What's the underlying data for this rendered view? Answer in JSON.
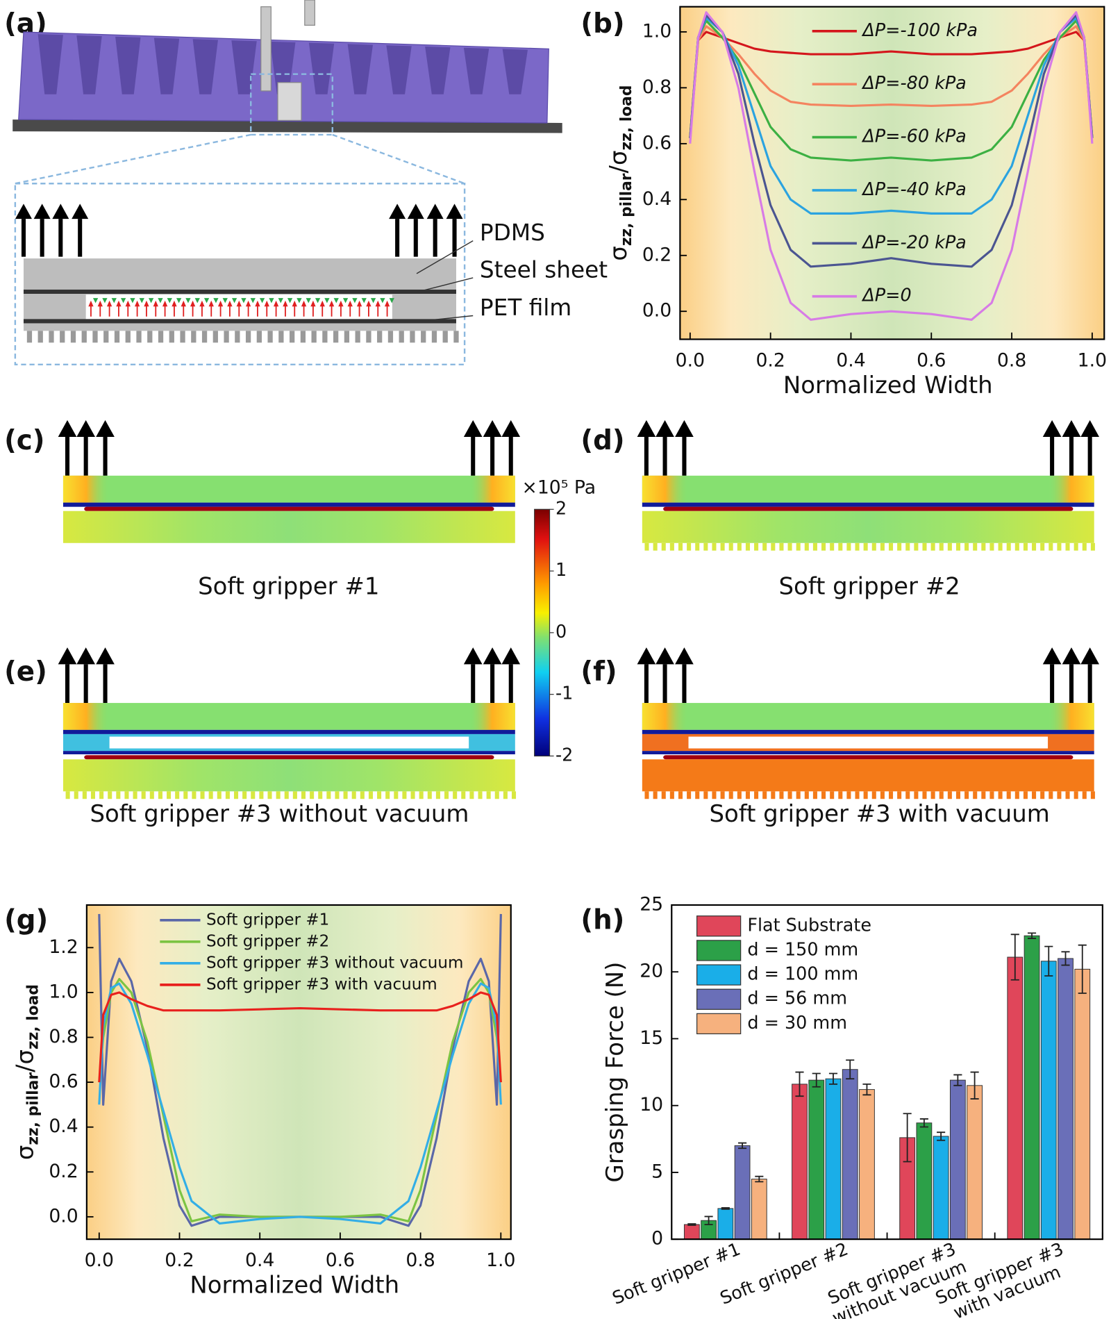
{
  "figure": {
    "panel_labels": [
      "(a)",
      "(b)",
      "(c)",
      "(d)",
      "(e)",
      "(f)",
      "(g)",
      "(h)"
    ],
    "layers": [
      "PDMS",
      "Steel sheet",
      "PET film"
    ],
    "captions": [
      "Soft gripper #1",
      "Soft gripper #2",
      "Soft gripper #3 without vacuum",
      "Soft gripper #3 with vacuum"
    ],
    "colorbar": {
      "label": "×10⁵ Pa",
      "range": [
        -2,
        2
      ],
      "ticks": [
        2,
        1,
        0,
        -1,
        -2
      ]
    }
  },
  "chart_data": [
    {
      "type": "line",
      "xlabel": "Normalized Width",
      "ylabel": [
        "σ",
        "zz, pillar",
        "/σ",
        "zz, load"
      ],
      "x": [
        0,
        0.02,
        0.04,
        0.08,
        0.12,
        0.16,
        0.2,
        0.25,
        0.3,
        0.4,
        0.5,
        0.6,
        0.7,
        0.75,
        0.8,
        0.84,
        0.88,
        0.92,
        0.96,
        0.98,
        1.0
      ],
      "xlim": [
        -0.025,
        1.03
      ],
      "ylim": [
        -0.1,
        1.09
      ],
      "xticks": [
        {
          "value": 0,
          "label": "0.0"
        },
        {
          "value": 0.2,
          "label": "0.2"
        },
        {
          "value": 0.4,
          "label": "0.4"
        },
        {
          "value": 0.6,
          "label": "0.6"
        },
        {
          "value": 0.8,
          "label": "0.8"
        },
        {
          "value": 1,
          "label": "1.0"
        }
      ],
      "yticks": [
        {
          "value": 0,
          "label": "0.0"
        },
        {
          "value": 0.2,
          "label": "0.2"
        },
        {
          "value": 0.4,
          "label": "0.4"
        },
        {
          "value": 0.6,
          "label": "0.6"
        },
        {
          "value": 0.8,
          "label": "0.8"
        },
        {
          "value": 1,
          "label": "1.0"
        }
      ],
      "legend": "inline",
      "series": [
        {
          "name": "ΔP=-100 kPa",
          "color": "#d4161c",
          "values": [
            0.62,
            0.97,
            1.0,
            0.98,
            0.96,
            0.94,
            0.93,
            0.925,
            0.92,
            0.92,
            0.93,
            0.92,
            0.92,
            0.925,
            0.93,
            0.94,
            0.96,
            0.98,
            1.0,
            0.97,
            0.62
          ]
        },
        {
          "name": "ΔP=-80 kPa",
          "color": "#f4845f",
          "values": [
            0.62,
            0.97,
            1.02,
            0.98,
            0.92,
            0.85,
            0.79,
            0.75,
            0.74,
            0.735,
            0.74,
            0.735,
            0.74,
            0.75,
            0.79,
            0.85,
            0.92,
            0.98,
            1.02,
            0.97,
            0.62
          ]
        },
        {
          "name": "ΔP=-60 kPa",
          "color": "#3cb043",
          "values": [
            0.62,
            0.98,
            1.04,
            0.98,
            0.9,
            0.78,
            0.66,
            0.58,
            0.55,
            0.54,
            0.55,
            0.54,
            0.55,
            0.58,
            0.66,
            0.78,
            0.9,
            0.98,
            1.04,
            0.98,
            0.62
          ]
        },
        {
          "name": "ΔP=-40 kPa",
          "color": "#2ba3e0",
          "values": [
            0.62,
            0.98,
            1.05,
            1.0,
            0.88,
            0.7,
            0.52,
            0.4,
            0.35,
            0.35,
            0.36,
            0.35,
            0.35,
            0.4,
            0.52,
            0.7,
            0.88,
            1.0,
            1.05,
            0.98,
            0.62
          ]
        },
        {
          "name": "ΔP=-20 kPa",
          "color": "#4b5591",
          "values": [
            0.62,
            0.98,
            1.06,
            1.0,
            0.85,
            0.6,
            0.38,
            0.22,
            0.16,
            0.17,
            0.19,
            0.17,
            0.16,
            0.22,
            0.38,
            0.6,
            0.85,
            1.0,
            1.06,
            0.98,
            0.62
          ]
        },
        {
          "name": "ΔP=0",
          "color": "#d77be6",
          "values": [
            0.6,
            0.98,
            1.07,
            1.0,
            0.8,
            0.5,
            0.22,
            0.03,
            -0.03,
            -0.01,
            0.0,
            -0.01,
            -0.03,
            0.03,
            0.22,
            0.5,
            0.8,
            1.0,
            1.07,
            0.98,
            0.6
          ]
        }
      ]
    },
    {
      "type": "line",
      "xlabel": "Normalized Width",
      "ylabel": [
        "σ",
        "zz, pillar",
        "/σ",
        "zz, load"
      ],
      "x": [
        0,
        0.01,
        0.03,
        0.05,
        0.08,
        0.12,
        0.16,
        0.2,
        0.23,
        0.3,
        0.4,
        0.5,
        0.6,
        0.7,
        0.77,
        0.8,
        0.84,
        0.88,
        0.92,
        0.95,
        0.97,
        0.99,
        1.0
      ],
      "xlim": [
        -0.031,
        1.025
      ],
      "ylim": [
        -0.1,
        1.39
      ],
      "xticks": [
        {
          "value": 0,
          "label": "0.0"
        },
        {
          "value": 0.2,
          "label": "0.2"
        },
        {
          "value": 0.4,
          "label": "0.4"
        },
        {
          "value": 0.6,
          "label": "0.6"
        },
        {
          "value": 0.8,
          "label": "0.8"
        },
        {
          "value": 1,
          "label": "1.0"
        }
      ],
      "yticks": [
        {
          "value": 0,
          "label": "0.0"
        },
        {
          "value": 0.2,
          "label": "0.2"
        },
        {
          "value": 0.4,
          "label": "0.4"
        },
        {
          "value": 0.6,
          "label": "0.6"
        },
        {
          "value": 0.8,
          "label": "0.8"
        },
        {
          "value": 1,
          "label": "1.0"
        },
        {
          "value": 1.2,
          "label": "1.2"
        }
      ],
      "legend": "top-left",
      "series": [
        {
          "name": "Soft gripper #1",
          "color": "#5a67a8",
          "values": [
            1.35,
            0.5,
            1.05,
            1.15,
            1.05,
            0.75,
            0.35,
            0.05,
            -0.04,
            0.0,
            0.0,
            0.0,
            0.0,
            0.0,
            -0.04,
            0.05,
            0.35,
            0.75,
            1.05,
            1.15,
            1.05,
            0.5,
            1.35
          ]
        },
        {
          "name": "Soft gripper #2",
          "color": "#7cc443",
          "values": [
            0.6,
            0.8,
            1.0,
            1.06,
            1.0,
            0.78,
            0.45,
            0.12,
            -0.02,
            0.01,
            0.0,
            0.0,
            0.0,
            0.01,
            -0.02,
            0.12,
            0.45,
            0.78,
            1.0,
            1.06,
            1.0,
            0.8,
            0.6
          ]
        },
        {
          "name": "Soft gripper #3 without vacuum",
          "color": "#33aee6",
          "values": [
            0.5,
            0.85,
            1.02,
            1.04,
            0.95,
            0.72,
            0.47,
            0.22,
            0.07,
            -0.03,
            -0.01,
            0.0,
            -0.01,
            -0.03,
            0.07,
            0.22,
            0.47,
            0.72,
            0.95,
            1.04,
            1.02,
            0.85,
            0.5
          ]
        },
        {
          "name": "Soft gripper #3 with vacuum",
          "color": "#e8211d",
          "values": [
            0.6,
            0.9,
            0.99,
            1.0,
            0.97,
            0.94,
            0.92,
            0.92,
            0.92,
            0.92,
            0.925,
            0.93,
            0.925,
            0.92,
            0.92,
            0.92,
            0.92,
            0.94,
            0.97,
            1.0,
            0.99,
            0.9,
            0.6
          ]
        }
      ]
    },
    {
      "type": "bar",
      "ylabel": "Grasping Force (N)",
      "categories": [
        [
          "Soft gripper #1"
        ],
        [
          "Soft gripper #2"
        ],
        [
          "Soft gripper #3",
          "without vacuum"
        ],
        [
          "Soft gripper #3",
          "with vacuum"
        ]
      ],
      "ylim": [
        0,
        25
      ],
      "yticks": [
        0,
        5,
        10,
        15,
        20,
        25
      ],
      "legend": "top-left",
      "series": [
        {
          "name": "Flat Substrate",
          "color": "#e0465a",
          "values": [
            1.1,
            11.6,
            7.6,
            21.1
          ],
          "errors": [
            0.05,
            0.9,
            1.8,
            1.7
          ]
        },
        {
          "name": "d = 150 mm",
          "color": "#2ca048",
          "values": [
            1.4,
            11.9,
            8.7,
            22.7
          ],
          "errors": [
            0.3,
            0.5,
            0.3,
            0.2
          ]
        },
        {
          "name": "d = 100 mm",
          "color": "#1aaee8",
          "values": [
            2.3,
            12.0,
            7.7,
            20.8
          ],
          "errors": [
            0.05,
            0.4,
            0.3,
            1.1
          ]
        },
        {
          "name": "d = 56 mm",
          "color": "#6a6fb8",
          "values": [
            7.0,
            12.7,
            11.9,
            21.0
          ],
          "errors": [
            0.2,
            0.7,
            0.4,
            0.5
          ]
        },
        {
          "name": "d = 30 mm",
          "color": "#f6b17e",
          "values": [
            4.5,
            11.2,
            11.5,
            20.2
          ],
          "errors": [
            0.2,
            0.4,
            1.0,
            1.8
          ]
        }
      ]
    }
  ]
}
